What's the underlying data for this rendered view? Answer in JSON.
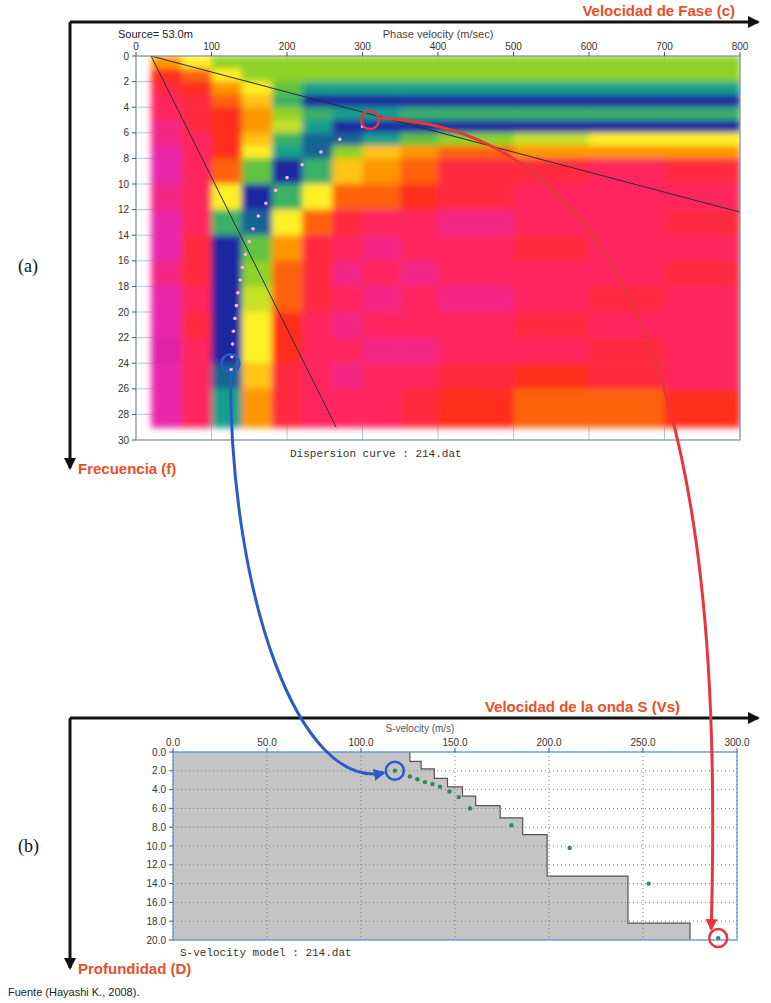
{
  "chart_data": [
    {
      "type": "heatmap",
      "panel_label": "(a)",
      "x_label": "Velocidad de Fase (c)",
      "x_sublabel": "Phase velocity (m/sec)",
      "y_label": "Frecuencia (f)",
      "annotation": "Source= 53.0m",
      "footer": "Dispersion curve : 214.dat",
      "xlim": [
        0,
        800
      ],
      "xticks": [
        0,
        100,
        200,
        300,
        400,
        500,
        600,
        700,
        800
      ],
      "ylim": [
        0,
        30
      ],
      "yticks": [
        0,
        2,
        4,
        6,
        8,
        10,
        12,
        14,
        16,
        18,
        20,
        22,
        24,
        26,
        28,
        30
      ],
      "grid": true,
      "x_edges": [
        20,
        60,
        100,
        140,
        180,
        220,
        260,
        300,
        350,
        400,
        500,
        600,
        700,
        800
      ],
      "y_edges": [
        0,
        1,
        2,
        3,
        4,
        5,
        6,
        7,
        8,
        10,
        12,
        14,
        16,
        18,
        20,
        22,
        24,
        26,
        29
      ],
      "cells": [
        [
          0.5,
          0.6,
          0.7,
          0.7,
          0.7,
          0.7,
          0.7,
          0.7,
          0.7,
          0.7,
          0.7,
          0.7,
          0.7
        ],
        [
          0.4,
          0.45,
          0.6,
          0.7,
          0.7,
          0.7,
          0.7,
          0.7,
          0.7,
          0.7,
          0.7,
          0.7,
          0.7
        ],
        [
          0.35,
          0.4,
          0.5,
          0.6,
          0.75,
          0.85,
          0.85,
          0.85,
          0.85,
          0.85,
          0.85,
          0.85,
          0.85
        ],
        [
          0.3,
          0.35,
          0.45,
          0.55,
          0.8,
          0.95,
          0.95,
          0.95,
          0.95,
          0.95,
          0.95,
          0.95,
          0.95
        ],
        [
          0.3,
          0.35,
          0.4,
          0.5,
          0.7,
          0.8,
          0.85,
          0.85,
          0.8,
          0.8,
          0.8,
          0.8,
          0.8
        ],
        [
          0.25,
          0.35,
          0.4,
          0.5,
          0.65,
          0.85,
          0.95,
          0.95,
          0.95,
          0.95,
          0.95,
          0.95,
          0.95
        ],
        [
          0.25,
          0.3,
          0.4,
          0.55,
          0.8,
          0.9,
          0.9,
          0.85,
          0.75,
          0.7,
          0.65,
          0.6,
          0.6
        ],
        [
          0.2,
          0.3,
          0.4,
          0.6,
          0.85,
          0.9,
          0.7,
          0.55,
          0.5,
          0.45,
          0.5,
          0.5,
          0.5
        ],
        [
          0.2,
          0.3,
          0.45,
          0.75,
          0.95,
          0.8,
          0.55,
          0.5,
          0.45,
          0.35,
          0.35,
          0.3,
          0.35
        ],
        [
          0.25,
          0.3,
          0.6,
          0.95,
          0.8,
          0.6,
          0.45,
          0.45,
          0.4,
          0.35,
          0.3,
          0.3,
          0.3
        ],
        [
          0.2,
          0.3,
          0.8,
          0.9,
          0.6,
          0.45,
          0.35,
          0.3,
          0.3,
          0.25,
          0.3,
          0.3,
          0.35
        ],
        [
          0.2,
          0.35,
          0.95,
          0.75,
          0.5,
          0.35,
          0.3,
          0.25,
          0.3,
          0.3,
          0.35,
          0.3,
          0.3
        ],
        [
          0.25,
          0.35,
          0.95,
          0.7,
          0.45,
          0.35,
          0.25,
          0.3,
          0.25,
          0.3,
          0.3,
          0.3,
          0.35
        ],
        [
          0.2,
          0.3,
          0.95,
          0.65,
          0.45,
          0.35,
          0.3,
          0.25,
          0.3,
          0.25,
          0.3,
          0.35,
          0.3
        ],
        [
          0.2,
          0.35,
          0.95,
          0.6,
          0.4,
          0.3,
          0.25,
          0.3,
          0.3,
          0.3,
          0.35,
          0.3,
          0.3
        ],
        [
          0.15,
          0.3,
          0.95,
          0.6,
          0.4,
          0.3,
          0.3,
          0.25,
          0.25,
          0.3,
          0.3,
          0.35,
          0.3
        ],
        [
          0.2,
          0.3,
          0.9,
          0.55,
          0.35,
          0.3,
          0.25,
          0.3,
          0.3,
          0.35,
          0.4,
          0.35,
          0.3
        ],
        [
          0.2,
          0.3,
          0.85,
          0.5,
          0.35,
          0.3,
          0.3,
          0.3,
          0.35,
          0.4,
          0.45,
          0.45,
          0.4
        ]
      ],
      "points": {
        "x": [
          300,
          270,
          245,
          220,
          200,
          185,
          172,
          162,
          155,
          150,
          145,
          141,
          138,
          135,
          133,
          131,
          129,
          128,
          127,
          126
        ],
        "values": [
          5.5,
          6.5,
          7.5,
          8.5,
          9.5,
          10.5,
          11.5,
          12.5,
          13.5,
          14.5,
          15.5,
          16.5,
          17.5,
          18.5,
          19.5,
          20.5,
          21.5,
          22.5,
          23.5,
          24.5
        ],
        "color": "#ffb3d3",
        "marker": "circle"
      },
      "lines": [
        {
          "x": [
            20,
            800
          ],
          "values": [
            0,
            12.2
          ],
          "color": "#2b2b3a"
        },
        {
          "x": [
            20,
            265
          ],
          "values": [
            0,
            29
          ],
          "color": "#2b2b3a"
        }
      ],
      "highlights": [
        {
          "x": 310,
          "value": 5,
          "color": "#e8363a"
        },
        {
          "x": 125,
          "value": 24,
          "color": "#2a5cc8"
        }
      ]
    },
    {
      "type": "step_area",
      "panel_label": "(b)",
      "x_label": "Velocidad de la onda S (Vs)",
      "x_sublabel": "S-velocity (m/s)",
      "y_label": "Profundidad (D)",
      "footer": "S-velocity model : 214.dat",
      "xlim": [
        0,
        300
      ],
      "xticks": [
        {
          "value": 0,
          "label": "0.0"
        },
        {
          "value": 50,
          "label": "50.0"
        },
        {
          "value": 100,
          "label": "100.0"
        },
        {
          "value": 150,
          "label": "150.0"
        },
        {
          "value": 200,
          "label": "200.0"
        },
        {
          "value": 250,
          "label": "250.0"
        },
        {
          "value": 300,
          "label": "300.0"
        }
      ],
      "ylim": [
        0,
        20
      ],
      "yticks": [
        {
          "value": 0,
          "label": "0.0"
        },
        {
          "value": 2,
          "label": "2.0"
        },
        {
          "value": 4,
          "label": "4.0"
        },
        {
          "value": 6,
          "label": "6.0"
        },
        {
          "value": 8,
          "label": "8.0"
        },
        {
          "value": 10,
          "label": "10.0"
        },
        {
          "value": 12,
          "label": "12.0"
        },
        {
          "value": 14,
          "label": "14.0"
        },
        {
          "value": 16,
          "label": "16.0"
        },
        {
          "value": 18,
          "label": "18.0"
        },
        {
          "value": 20,
          "label": "20.0"
        }
      ],
      "grid": true,
      "layers": {
        "top_depth": [
          0,
          1.0,
          1.8,
          2.8,
          3.7,
          4.7,
          5.7,
          7.0,
          8.8,
          13.2,
          18.2
        ],
        "values": [
          126,
          132,
          139,
          146,
          154,
          161,
          174,
          186,
          199,
          242,
          275
        ],
        "color": "#c4c4c4"
      },
      "points": {
        "x": [
          118,
          126,
          130,
          134,
          138,
          142,
          147,
          152,
          158,
          180,
          211,
          253,
          290
        ],
        "values": [
          2.0,
          2.6,
          2.9,
          3.2,
          3.4,
          3.7,
          4.2,
          4.8,
          6.0,
          7.8,
          10.2,
          14.0,
          19.8
        ],
        "color": "#2e8b57",
        "marker": "circle"
      },
      "highlights": [
        {
          "x": 118,
          "value": 2.0,
          "color": "#2a5cc8"
        },
        {
          "x": 290,
          "value": 19.8,
          "color": "#e8363a"
        }
      ]
    }
  ],
  "caption": "Fuente (Hayashi K., 2008)."
}
